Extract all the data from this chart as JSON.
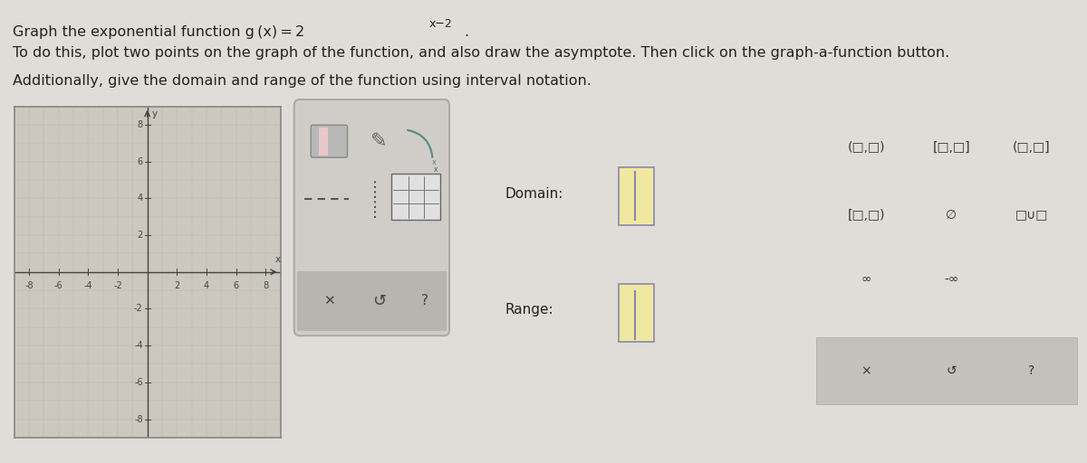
{
  "title_line1_plain": "Graph the exponential function g (x) = 2",
  "title_line1_sup": "x−2",
  "title_line2": "To do this, plot two points on the graph of the function, and also draw the asymptote. Then click on the graph-a-function button.",
  "title_line3": "Additionally, give the domain and range of the function using interval notation.",
  "bg_color": "#e0ddd8",
  "graph_bg": "#ccc8c0",
  "graph_border": "#888880",
  "grid_minor_color": "#b8b4ac",
  "axis_color": "#444444",
  "axis_range": [
    -9,
    9,
    -9,
    9
  ],
  "tick_labels_x": [
    -8,
    -6,
    -4,
    -2,
    2,
    4,
    6,
    8
  ],
  "tick_labels_y": [
    -8,
    -6,
    -4,
    -2,
    2,
    4,
    6,
    8
  ],
  "domain_label": "Domain:",
  "range_label": "Range:",
  "input_box_color": "#f0e8a0",
  "input_border_color": "#8888aa",
  "toolbar_bg": "#d0cdc8",
  "toolbar_border": "#aaaaaa",
  "dr_box_bg": "#e8e4e0",
  "dr_box_border": "#aaaaaa",
  "sym_bg": "#d4d0cc",
  "sym_border": "#aaaaaa",
  "sym_btn_bg": "#c4c0bc",
  "text_color": "#222222",
  "sym_text_color": "#333333",
  "font_size_title": 11.5,
  "font_size_axis": 7,
  "font_size_label": 11,
  "font_size_sym": 10
}
